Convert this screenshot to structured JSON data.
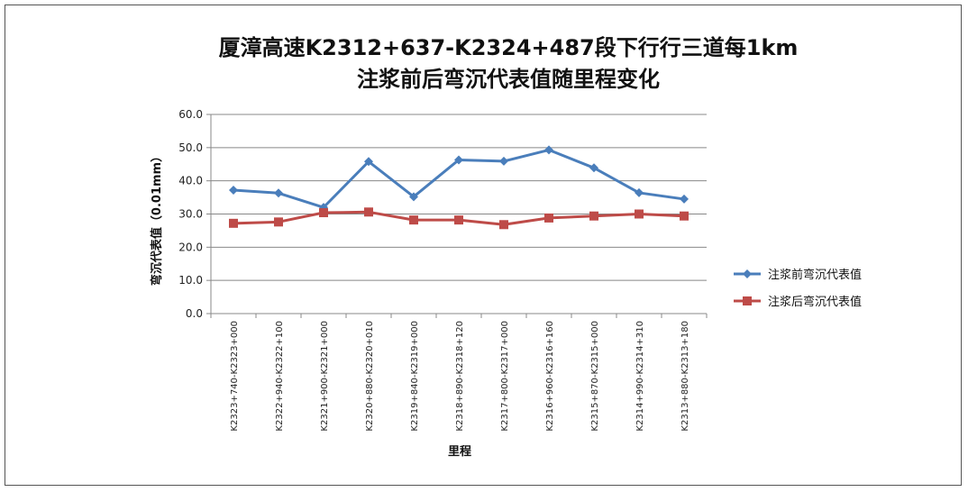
{
  "chart_data": {
    "type": "line",
    "title_lines": [
      "厦漳高速K2312+637-K2324+487段下行行三道每1km",
      "注浆前后弯沉代表值随里程变化"
    ],
    "xlabel": "里程",
    "ylabel": "弯沉代表值（0.01mm）",
    "ylim": [
      0,
      60
    ],
    "yticks": [
      "0.0",
      "10.0",
      "20.0",
      "30.0",
      "40.0",
      "50.0",
      "60.0"
    ],
    "grid": true,
    "legend_position": "right",
    "categories": [
      "K2323+740-K2323+000",
      "K2322+940-K2322+100",
      "K2321+900-K2321+000",
      "K2320+880-K2320+010",
      "K2319+840-K2319+000",
      "K2318+890-K2318+120",
      "K2317+800-K2317+000",
      "K2316+960-K2316+160",
      "K2315+870-K2315+000",
      "K2314+990-K2314+310",
      "K2313+880-K2313+180"
    ],
    "series": [
      {
        "name": "注浆前弯沉代表值",
        "color": "#4a7ebb",
        "marker": "diamond",
        "values": [
          37.2,
          36.3,
          32.0,
          45.8,
          35.2,
          46.3,
          45.9,
          49.3,
          43.9,
          36.4,
          34.5
        ]
      },
      {
        "name": "注浆后弯沉代表值",
        "color": "#be4b48",
        "marker": "square",
        "values": [
          27.2,
          27.6,
          30.4,
          30.6,
          28.2,
          28.2,
          26.8,
          28.8,
          29.4,
          30.0,
          29.4
        ]
      }
    ]
  }
}
